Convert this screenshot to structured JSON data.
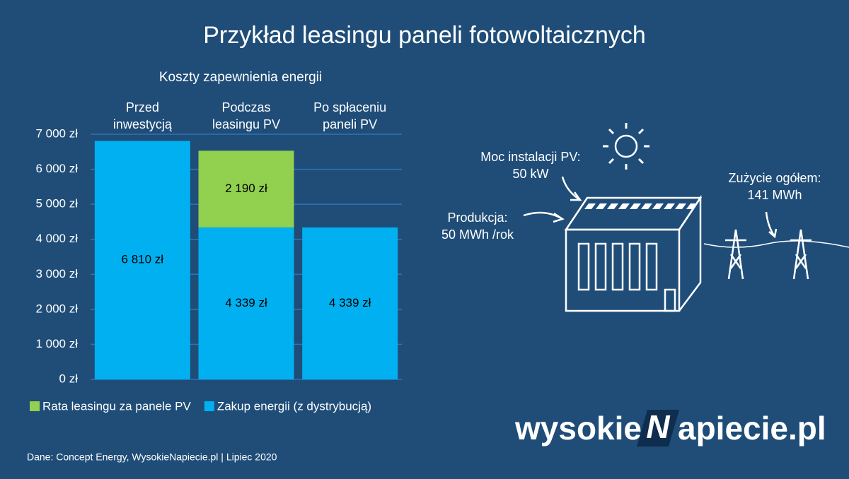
{
  "chart_data": {
    "type": "bar",
    "stacked": true,
    "title": "Przykład leasingu paneli fotowoltaicznych",
    "subtitle": "Koszty zapewnienia energii",
    "categories": [
      "Przed\ninwestycją",
      "Podczas\nleasingu PV",
      "Po spłaceniu\npaneli PV"
    ],
    "series": [
      {
        "name": "Zakup energii (z dystrybucją)",
        "color": "#00b0f0",
        "values": [
          6810,
          4339,
          4339
        ],
        "value_labels": [
          "6 810 zł",
          "4 339 zł",
          "4 339 zł"
        ]
      },
      {
        "name": "Rata leasingu za panele PV",
        "color": "#92d050",
        "values": [
          null,
          2190,
          null
        ],
        "value_labels": [
          null,
          "2 190 zł",
          null
        ]
      }
    ],
    "ylim": [
      0,
      7000
    ],
    "yticks": [
      {
        "value": 0,
        "label": "0 zł"
      },
      {
        "value": 1000,
        "label": "1 000 zł"
      },
      {
        "value": 2000,
        "label": "2 000 zł"
      },
      {
        "value": 3000,
        "label": "3 000 zł"
      },
      {
        "value": 4000,
        "label": "4 000 zł"
      },
      {
        "value": 5000,
        "label": "5 000 zł"
      },
      {
        "value": 6000,
        "label": "6 000 zł"
      },
      {
        "value": 7000,
        "label": "7 000 zł"
      }
    ],
    "grid": true,
    "legend": "bottom",
    "source": "Dane: Concept Energy, WysokieNapiecie.pl  |  Lipiec 2020"
  },
  "diagram": {
    "labels": [
      "Moc instalacji PV:\n50 kW",
      "Produkcja:\n50 MWh /rok",
      "Zużycie ogółem:\n141 MWh"
    ]
  },
  "logo": {
    "left": "wysokie",
    "mark": "N",
    "right": "apiecie.pl"
  }
}
